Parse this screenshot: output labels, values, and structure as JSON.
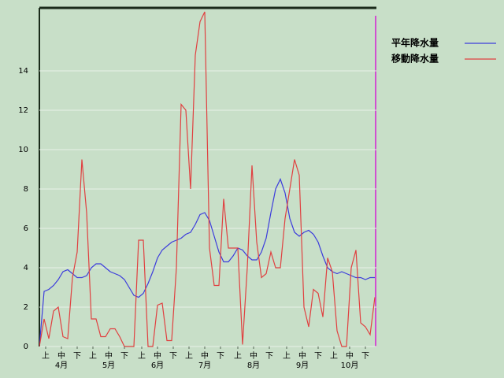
{
  "chart_data": {
    "type": "line",
    "xlim": [
      0,
      214
    ],
    "ylim": [
      0,
      17.2
    ],
    "yticks": [
      0,
      2,
      4,
      6,
      8,
      10,
      12,
      14
    ],
    "xticks": [
      {
        "value": 4,
        "label": "上"
      },
      {
        "value": 14,
        "label": "中"
      },
      {
        "value": 24,
        "label": "下"
      },
      {
        "value": 34,
        "label": "上"
      },
      {
        "value": 44,
        "label": "中"
      },
      {
        "value": 54,
        "label": "下"
      },
      {
        "value": 65,
        "label": "上"
      },
      {
        "value": 75,
        "label": "中"
      },
      {
        "value": 85,
        "label": "下"
      },
      {
        "value": 95,
        "label": "上"
      },
      {
        "value": 105,
        "label": "中"
      },
      {
        "value": 115,
        "label": "下"
      },
      {
        "value": 126,
        "label": "上"
      },
      {
        "value": 136,
        "label": "中"
      },
      {
        "value": 146,
        "label": "下"
      },
      {
        "value": 157,
        "label": "上"
      },
      {
        "value": 167,
        "label": "中"
      },
      {
        "value": 177,
        "label": "下"
      },
      {
        "value": 187,
        "label": "上"
      },
      {
        "value": 197,
        "label": "中"
      },
      {
        "value": 207,
        "label": "下"
      }
    ],
    "month_labels": [
      {
        "value": 14,
        "label": "4月"
      },
      {
        "value": 44,
        "label": "5月"
      },
      {
        "value": 75,
        "label": "6月"
      },
      {
        "value": 105,
        "label": "7月"
      },
      {
        "value": 136,
        "label": "8月"
      },
      {
        "value": 167,
        "label": "9月"
      },
      {
        "value": 197,
        "label": "10月"
      }
    ],
    "x": [
      0,
      3,
      6,
      9,
      12,
      15,
      18,
      21,
      24,
      27,
      30,
      33,
      36,
      39,
      42,
      45,
      48,
      51,
      54,
      57,
      60,
      63,
      66,
      69,
      72,
      75,
      78,
      81,
      84,
      87,
      90,
      93,
      96,
      99,
      102,
      105,
      108,
      111,
      114,
      117,
      120,
      123,
      126,
      129,
      132,
      135,
      138,
      141,
      144,
      147,
      150,
      153,
      156,
      159,
      162,
      165,
      168,
      171,
      174,
      177,
      180,
      183,
      186,
      189,
      192,
      195,
      198,
      201,
      204,
      207,
      210,
      213
    ],
    "series": [
      {
        "name": "平年降水量",
        "color": "#3c3cdc",
        "values": [
          0,
          2.8,
          2.9,
          3.1,
          3.4,
          3.8,
          3.9,
          3.7,
          3.5,
          3.5,
          3.6,
          4.0,
          4.2,
          4.2,
          4.0,
          3.8,
          3.7,
          3.6,
          3.4,
          3.0,
          2.6,
          2.5,
          2.7,
          3.2,
          3.8,
          4.5,
          4.9,
          5.1,
          5.3,
          5.4,
          5.5,
          5.7,
          5.8,
          6.2,
          6.7,
          6.8,
          6.4,
          5.6,
          4.8,
          4.3,
          4.3,
          4.6,
          5.0,
          4.9,
          4.6,
          4.4,
          4.4,
          4.8,
          5.5,
          6.8,
          8.0,
          8.5,
          7.8,
          6.5,
          5.8,
          5.6,
          5.8,
          5.9,
          5.7,
          5.3,
          4.6,
          4.0,
          3.8,
          3.7,
          3.8,
          3.7,
          3.6,
          3.5,
          3.5,
          3.4,
          3.5,
          3.5
        ]
      },
      {
        "name": "移動降水量",
        "color": "#e04040",
        "values": [
          0,
          1.4,
          0.4,
          1.8,
          2.0,
          0.5,
          0.4,
          3.5,
          4.8,
          9.5,
          6.8,
          1.4,
          1.4,
          0.5,
          0.5,
          0.9,
          0.9,
          0.5,
          0,
          0,
          0,
          5.4,
          5.4,
          0,
          0,
          2.1,
          2.2,
          0.3,
          0.3,
          4.0,
          12.3,
          12.0,
          8.0,
          14.8,
          16.5,
          17.0,
          5.0,
          3.1,
          3.1,
          7.5,
          5.0,
          5.0,
          5.0,
          0.1,
          4.0,
          9.2,
          5.3,
          3.5,
          3.7,
          4.8,
          4.0,
          4.0,
          6.5,
          8.0,
          9.5,
          8.7,
          2.0,
          1.0,
          2.9,
          2.7,
          1.5,
          4.5,
          3.8,
          0.8,
          0,
          0,
          4.0,
          4.9,
          1.2,
          1.0,
          0.6,
          2.5
        ]
      }
    ],
    "legend": "top-right"
  }
}
